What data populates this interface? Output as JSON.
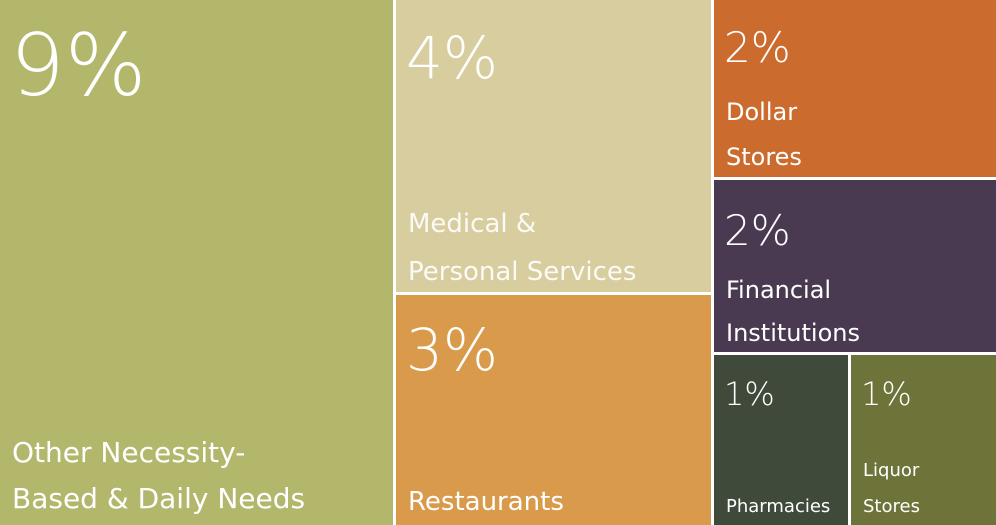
{
  "chart_data": {
    "type": "treemap",
    "categories": [
      [
        "Other Necessity-",
        "Based & Daily Needs"
      ],
      [
        "Medical &",
        "Personal Services"
      ],
      [
        "Restaurants"
      ],
      [
        "Dollar",
        "Stores"
      ],
      [
        "Financial",
        "Institutions"
      ],
      [
        "Pharmacies"
      ],
      [
        "Liquor",
        "Stores"
      ]
    ],
    "values": [
      9,
      4,
      3,
      2,
      2,
      1,
      1
    ],
    "value_labels": [
      "9%",
      "4%",
      "3%",
      "2%",
      "2%",
      "1%",
      "1%"
    ],
    "colors": [
      "#b3b76c",
      "#d8cd9f",
      "#d99a4b",
      "#cb6b2e",
      "#4a3a51",
      "#3f4a3b",
      "#6e7439"
    ]
  }
}
